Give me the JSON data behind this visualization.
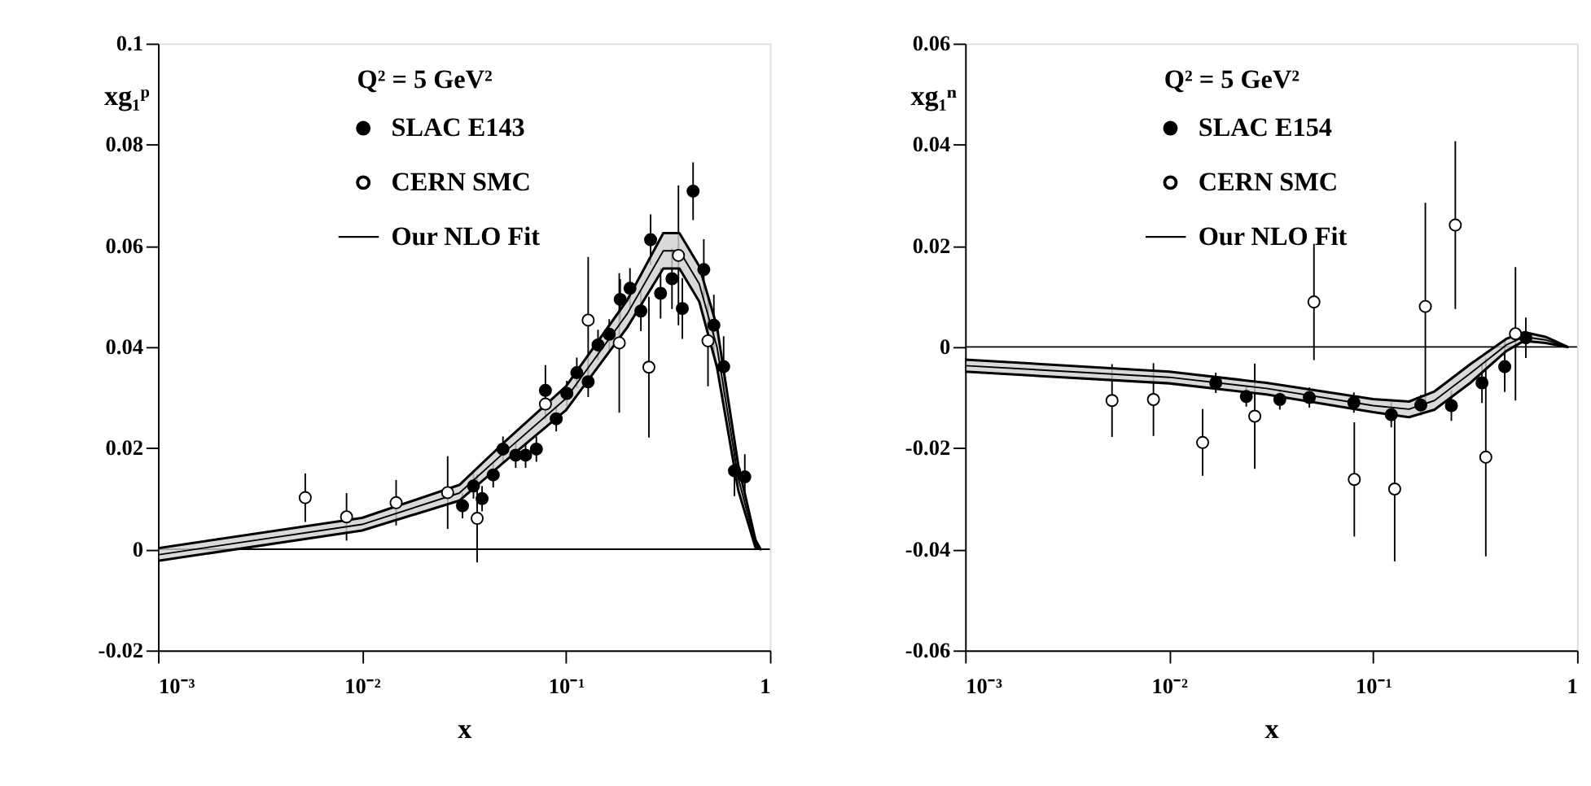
{
  "chart_data": [
    {
      "type": "scatter",
      "xlabel": "x",
      "ylabel": "xg₁ᵖ",
      "annotations": [
        "Q² = 5 GeV²"
      ],
      "log": "x",
      "legend": "top",
      "grid": false,
      "xlim": [
        0.001,
        1
      ],
      "xticks": [
        {
          "value": 0.001,
          "label": "10⁻³"
        },
        {
          "value": 0.01,
          "label": "10⁻²"
        },
        {
          "value": 0.1,
          "label": "10⁻¹"
        },
        1
      ],
      "ylim": [
        -0.02,
        0.1
      ],
      "yticks": [
        -0.02,
        0,
        0.02,
        0.04,
        0.06,
        0.08,
        0.1
      ],
      "ref_lines": [
        {
          "axis": "y",
          "value": 0,
          "color": "#000000"
        }
      ],
      "series": [
        {
          "name": "SLAC E143",
          "marker": "circle",
          "color": "#000000",
          "x": [
            0.0311,
            0.0352,
            0.0388,
            0.044,
            0.0491,
            0.0567,
            0.0634,
            0.0716,
            0.0793,
            0.0896,
            0.101,
            0.113,
            0.1285,
            0.1436,
            0.163,
            0.1845,
            0.206,
            0.233,
            0.26,
            0.291,
            0.331,
            0.372,
            0.42,
            0.474,
            0.531,
            0.593,
            0.67,
            0.753
          ],
          "values": [
            0.0086,
            0.0125,
            0.01,
            0.0147,
            0.0198,
            0.0186,
            0.0186,
            0.0198,
            0.0314,
            0.0258,
            0.0308,
            0.0349,
            0.0331,
            0.0404,
            0.0425,
            0.0494,
            0.0516,
            0.0471,
            0.0612,
            0.0506,
            0.0535,
            0.0476,
            0.0708,
            0.0553,
            0.0443,
            0.0361,
            0.0155,
            0.0143
          ],
          "errors": [
            0.0025,
            0.0025,
            0.0025,
            0.0025,
            0.0025,
            0.0025,
            0.0025,
            0.0025,
            0.005,
            0.0025,
            0.0025,
            0.003,
            0.003,
            0.003,
            0.003,
            0.004,
            0.004,
            0.004,
            0.005,
            0.005,
            0.006,
            0.006,
            0.0057,
            0.006,
            0.006,
            0.006,
            0.005,
            0.0045
          ]
        },
        {
          "name": "CERN SMC",
          "marker": "circle",
          "color": "#ffffff",
          "x": [
            0.00527,
            0.0084,
            0.0147,
            0.0263,
            0.0367,
            0.0793,
            0.1285,
            0.1825,
            0.255,
            0.356,
            0.497
          ],
          "values": [
            0.0102,
            0.0064,
            0.0092,
            0.0112,
            0.0061,
            0.0287,
            0.0453,
            0.0408,
            0.036,
            0.0581,
            0.0412
          ],
          "errors": [
            0.0048,
            0.0047,
            0.0045,
            0.0072,
            0.0087,
            0.003,
            0.0125,
            0.0138,
            0.0139,
            0.0138,
            0.009
          ]
        },
        {
          "name": "Our NLO Fit",
          "type": "line",
          "marker": "none",
          "color": "#000000",
          "x": [
            0.001,
            0.01,
            0.03,
            0.05,
            0.1,
            0.2,
            0.3,
            0.36,
            0.45,
            0.55,
            0.7,
            0.85,
            0.9
          ],
          "values": [
            -0.0011,
            0.0049,
            0.0111,
            0.0192,
            0.0298,
            0.0466,
            0.059,
            0.059,
            0.0525,
            0.04,
            0.014,
            0.001,
            0
          ],
          "lower": [
            -0.0023,
            0.0037,
            0.0096,
            0.0173,
            0.0275,
            0.0439,
            0.0555,
            0.0555,
            0.049,
            0.036,
            0.0116,
            0.0003,
            0
          ],
          "upper": [
            0.0002,
            0.0062,
            0.0127,
            0.0212,
            0.0322,
            0.0493,
            0.0625,
            0.0625,
            0.056,
            0.044,
            0.0165,
            0.0018,
            0
          ]
        }
      ]
    },
    {
      "type": "scatter",
      "xlabel": "x",
      "ylabel": "xg₁ⁿ",
      "annotations": [
        "Q² = 5 GeV²"
      ],
      "log": "x",
      "legend": "top",
      "grid": false,
      "xlim": [
        0.001,
        1
      ],
      "xticks": [
        {
          "value": 0.001,
          "label": "10⁻³"
        },
        {
          "value": 0.01,
          "label": "10⁻²"
        },
        {
          "value": 0.1,
          "label": "10⁻¹"
        },
        1
      ],
      "ylim": [
        -0.06,
        0.06
      ],
      "yticks": [
        -0.06,
        -0.04,
        -0.02,
        0,
        0.02,
        0.04,
        0.06
      ],
      "ref_lines": [
        {
          "axis": "y",
          "value": 0,
          "color": "#000000"
        }
      ],
      "series": [
        {
          "name": "SLAC E154",
          "marker": "circle",
          "color": "#000000",
          "x": [
            0.01694,
            0.0239,
            0.0349,
            0.0487,
            0.0805,
            0.1228,
            0.1714,
            0.242,
            0.342,
            0.442,
            0.561
          ],
          "values": [
            -0.0071,
            -0.0098,
            -0.0104,
            -0.01,
            -0.011,
            -0.0134,
            -0.0115,
            -0.0116,
            -0.0071,
            -0.0039,
            0.0018
          ],
          "errors": [
            0.002,
            0.002,
            0.002,
            0.002,
            0.002,
            0.0025,
            0.002,
            0.003,
            0.004,
            0.005,
            0.004
          ]
        },
        {
          "name": "CERN SMC",
          "marker": "circle",
          "color": "#ffffff",
          "x": [
            0.00525,
            0.00838,
            0.0146,
            0.0263,
            0.0513,
            0.0809,
            0.1276,
            0.1804,
            0.253,
            0.357,
            0.499
          ],
          "values": [
            -0.0106,
            -0.0104,
            -0.0189,
            -0.0137,
            0.0089,
            -0.0262,
            -0.0281,
            0.008,
            0.0241,
            -0.0218,
            0.0026
          ],
          "errors": [
            0.0072,
            0.0072,
            0.0066,
            0.0104,
            0.0115,
            0.0113,
            0.0143,
            0.0205,
            0.0166,
            0.0196,
            0.0132
          ]
        },
        {
          "name": "Our NLO Fit",
          "type": "line",
          "marker": "none",
          "color": "#000000",
          "x": [
            0.001,
            0.01,
            0.03,
            0.1,
            0.15,
            0.2,
            0.3,
            0.45,
            0.55,
            0.7,
            0.9
          ],
          "values": [
            -0.0037,
            -0.006,
            -0.0082,
            -0.0116,
            -0.0123,
            -0.0106,
            -0.0052,
            0.0004,
            0.002,
            0.0014,
            0
          ],
          "lower": [
            -0.0049,
            -0.0072,
            -0.0094,
            -0.0129,
            -0.0139,
            -0.0124,
            -0.0071,
            -0.0008,
            0.0012,
            0.0008,
            0
          ],
          "upper": [
            -0.0025,
            -0.0049,
            -0.0071,
            -0.0103,
            -0.0108,
            -0.0088,
            -0.0034,
            0.0016,
            0.0029,
            0.002,
            0
          ]
        }
      ]
    }
  ]
}
